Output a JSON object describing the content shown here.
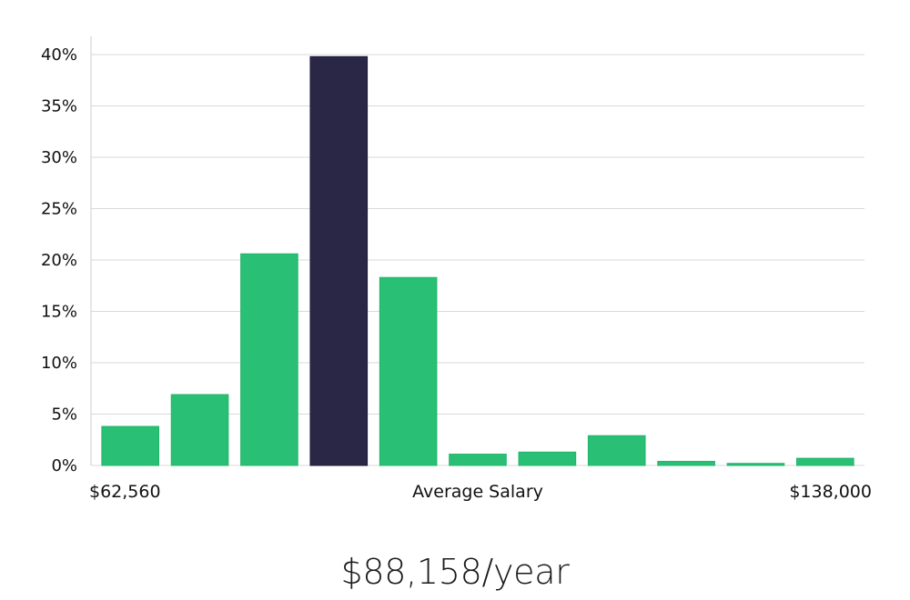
{
  "chart_data": {
    "type": "bar",
    "values": [
      3.8,
      6.9,
      20.6,
      39.8,
      18.3,
      1.1,
      1.3,
      2.9,
      0.4,
      0.2,
      0.7
    ],
    "highlight_index": 3,
    "ylim": [
      0,
      40
    ],
    "y_ticks": [
      0,
      5,
      10,
      15,
      20,
      25,
      30,
      35,
      40
    ],
    "y_tick_format": "percent",
    "x_label_left": "$62,560",
    "x_label_center": "Average Salary",
    "x_label_right": "$138,000",
    "grid": true,
    "colors": {
      "bar": "#29bf75",
      "highlight": "#292646",
      "grid": "#d9d9d9",
      "axis": "#cccccc"
    }
  },
  "summary": {
    "salary": "$88,158/year"
  }
}
